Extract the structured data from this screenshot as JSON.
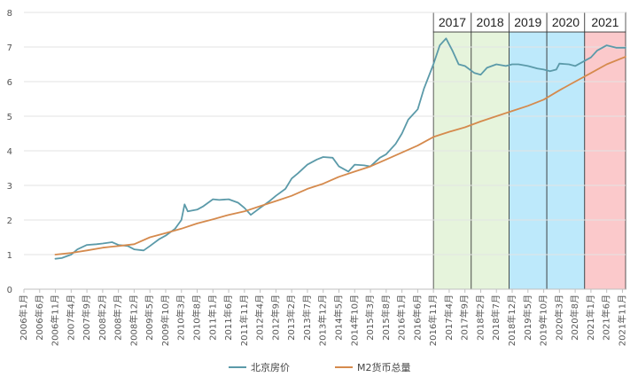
{
  "chart_data": {
    "type": "line",
    "title": "",
    "xlabel": "",
    "ylabel": "",
    "ylim": [
      0,
      8
    ],
    "y_ticks": [
      "0",
      "1",
      "2",
      "3",
      "4",
      "5",
      "6",
      "7",
      "8"
    ],
    "grid": "horizontal",
    "legend_position": "bottom",
    "x_tick_labels": [
      "2006年1月",
      "2006年6月",
      "2006年11月",
      "2007年4月",
      "2007年9月",
      "2008年2月",
      "2008年7月",
      "2008年12月",
      "2009年5月",
      "2009年10月",
      "2010年3月",
      "2010年8月",
      "2011年1月",
      "2011年6月",
      "2011年11月",
      "2012年4月",
      "2012年9月",
      "2013年2月",
      "2013年7月",
      "2013年12月",
      "2014年5月",
      "2014年10月",
      "2015年3月",
      "2015年8月",
      "2016年1月",
      "2016年6月",
      "2016年11月",
      "2017年4月",
      "2017年9月",
      "2018年2月",
      "2018年7月",
      "2018年12月",
      "2019年5月",
      "2019年10月",
      "2020年3月",
      "2020年8月",
      "2021年1月",
      "2021年6月",
      "2021年11月"
    ],
    "periods": [
      {
        "label": "2017",
        "start": "2016年11月",
        "end": "2017年11月",
        "color": "#e6f4dc"
      },
      {
        "label": "2018",
        "start": "2017年11月",
        "end": "2018年11月",
        "color": "#e6f4dc"
      },
      {
        "label": "2019",
        "start": "2018年11月",
        "end": "2019年11月",
        "color": "#bde9fb"
      },
      {
        "label": "2020",
        "start": "2019年11月",
        "end": "2020年11月",
        "color": "#bde9fb"
      },
      {
        "label": "2021",
        "start": "2020年11月",
        "end": "2021年12月",
        "color": "#fbc9cb"
      }
    ],
    "series": [
      {
        "name": "北京房价",
        "color": "#5b9aa9",
        "points": [
          [
            "2006年11月",
            0.88
          ],
          [
            "2007年1月",
            0.9
          ],
          [
            "2007年4月",
            1.0
          ],
          [
            "2007年6月",
            1.15
          ],
          [
            "2007年9月",
            1.28
          ],
          [
            "2007年12月",
            1.3
          ],
          [
            "2008年2月",
            1.32
          ],
          [
            "2008年5月",
            1.36
          ],
          [
            "2008年7月",
            1.28
          ],
          [
            "2008年10月",
            1.25
          ],
          [
            "2008年12月",
            1.15
          ],
          [
            "2009年3月",
            1.12
          ],
          [
            "2009年5月",
            1.25
          ],
          [
            "2009年8月",
            1.45
          ],
          [
            "2009年10月",
            1.55
          ],
          [
            "2010年1月",
            1.75
          ],
          [
            "2010年3月",
            2.0
          ],
          [
            "2010年4月",
            2.45
          ],
          [
            "2010年5月",
            2.25
          ],
          [
            "2010年8月",
            2.3
          ],
          [
            "2010年10月",
            2.4
          ],
          [
            "2011年1月",
            2.6
          ],
          [
            "2011年3月",
            2.58
          ],
          [
            "2011年6月",
            2.6
          ],
          [
            "2011年9月",
            2.5
          ],
          [
            "2011年11月",
            2.35
          ],
          [
            "2012年1月",
            2.15
          ],
          [
            "2012年4月",
            2.35
          ],
          [
            "2012年7月",
            2.55
          ],
          [
            "2012年9月",
            2.7
          ],
          [
            "2012年12月",
            2.9
          ],
          [
            "2013年2月",
            3.2
          ],
          [
            "2013年4月",
            3.35
          ],
          [
            "2013年7月",
            3.6
          ],
          [
            "2013年10月",
            3.75
          ],
          [
            "2013年12月",
            3.82
          ],
          [
            "2014年3月",
            3.8
          ],
          [
            "2014年5月",
            3.55
          ],
          [
            "2014年8月",
            3.4
          ],
          [
            "2014年10月",
            3.6
          ],
          [
            "2015年1月",
            3.58
          ],
          [
            "2015年3月",
            3.55
          ],
          [
            "2015年6月",
            3.8
          ],
          [
            "2015年8月",
            3.9
          ],
          [
            "2015年11月",
            4.2
          ],
          [
            "2016年1月",
            4.5
          ],
          [
            "2016年3月",
            4.9
          ],
          [
            "2016年6月",
            5.2
          ],
          [
            "2016年8月",
            5.8
          ],
          [
            "2016年11月",
            6.5
          ],
          [
            "2017年1月",
            7.05
          ],
          [
            "2017年3月",
            7.25
          ],
          [
            "2017年5月",
            6.9
          ],
          [
            "2017年7月",
            6.5
          ],
          [
            "2017年9月",
            6.45
          ],
          [
            "2017年12月",
            6.25
          ],
          [
            "2018年2月",
            6.2
          ],
          [
            "2018年4月",
            6.4
          ],
          [
            "2018年7月",
            6.5
          ],
          [
            "2018年10月",
            6.45
          ],
          [
            "2018年12月",
            6.5
          ],
          [
            "2019年2月",
            6.5
          ],
          [
            "2019年5月",
            6.45
          ],
          [
            "2019年8月",
            6.38
          ],
          [
            "2019年10月",
            6.35
          ],
          [
            "2019年12月",
            6.3
          ],
          [
            "2020年2月",
            6.35
          ],
          [
            "2020年3月",
            6.52
          ],
          [
            "2020年6月",
            6.5
          ],
          [
            "2020年8月",
            6.45
          ],
          [
            "2020年11月",
            6.6
          ],
          [
            "2021年1月",
            6.7
          ],
          [
            "2021年3月",
            6.9
          ],
          [
            "2021年6月",
            7.05
          ],
          [
            "2021年9月",
            6.98
          ],
          [
            "2021年12月",
            6.98
          ]
        ]
      },
      {
        "name": "M2货币总量",
        "color": "#d58a4d",
        "points": [
          [
            "2006年11月",
            1.0
          ],
          [
            "2007年4月",
            1.05
          ],
          [
            "2007年9月",
            1.12
          ],
          [
            "2008年2月",
            1.2
          ],
          [
            "2008年7月",
            1.25
          ],
          [
            "2008年12月",
            1.3
          ],
          [
            "2009年5月",
            1.5
          ],
          [
            "2009年10月",
            1.62
          ],
          [
            "2010年3月",
            1.75
          ],
          [
            "2010年8月",
            1.9
          ],
          [
            "2011年1月",
            2.02
          ],
          [
            "2011年6月",
            2.15
          ],
          [
            "2011年11月",
            2.25
          ],
          [
            "2012年4月",
            2.4
          ],
          [
            "2012年9月",
            2.55
          ],
          [
            "2013年2月",
            2.7
          ],
          [
            "2013年7月",
            2.9
          ],
          [
            "2013年12月",
            3.05
          ],
          [
            "2014年5月",
            3.25
          ],
          [
            "2014年10月",
            3.4
          ],
          [
            "2015年3月",
            3.55
          ],
          [
            "2015年8月",
            3.75
          ],
          [
            "2016年1月",
            3.95
          ],
          [
            "2016年6月",
            4.15
          ],
          [
            "2016年11月",
            4.4
          ],
          [
            "2017年4月",
            4.55
          ],
          [
            "2017年9月",
            4.68
          ],
          [
            "2018年2月",
            4.85
          ],
          [
            "2018年7月",
            5.0
          ],
          [
            "2018年12月",
            5.15
          ],
          [
            "2019年5月",
            5.3
          ],
          [
            "2019年10月",
            5.48
          ],
          [
            "2020年3月",
            5.75
          ],
          [
            "2020年8月",
            6.0
          ],
          [
            "2021年1月",
            6.25
          ],
          [
            "2021年6月",
            6.5
          ],
          [
            "2021年12月",
            6.72
          ]
        ]
      }
    ]
  }
}
